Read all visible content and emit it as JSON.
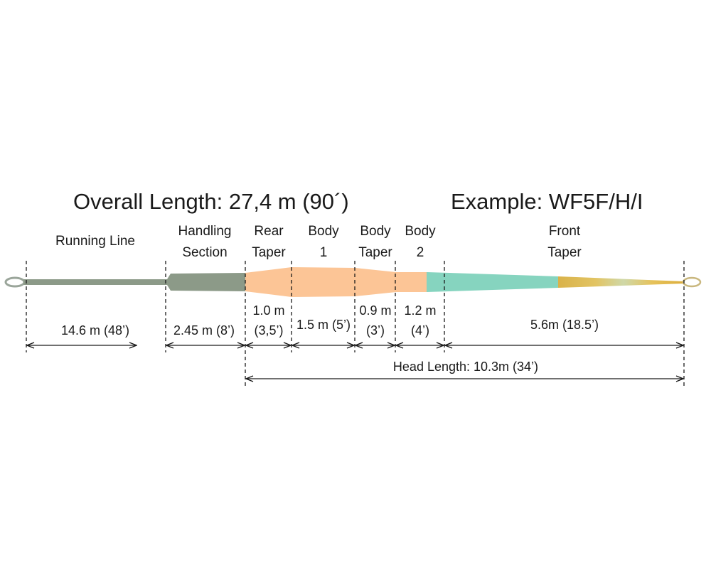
{
  "title_left": "Overall Length: 27,4 m (90´)",
  "title_right": "Example: WF5F/H/I",
  "sections": [
    {
      "id": "running-line",
      "label_lines": [
        "Running Line"
      ],
      "measure_lines": [
        "14.6 m (48’)"
      ],
      "color": "#8c9a88"
    },
    {
      "id": "handling-section",
      "label_lines": [
        "Handling",
        "Section"
      ],
      "measure_lines": [
        "2.45 m (8’)"
      ],
      "color": "#8c9a88"
    },
    {
      "id": "rear-taper",
      "label_lines": [
        "Rear",
        "Taper"
      ],
      "measure_lines": [
        "1.0 m",
        "(3,5’)"
      ],
      "color": "#fcc596"
    },
    {
      "id": "body-1",
      "label_lines": [
        "Body",
        "1"
      ],
      "measure_lines": [
        "1.5 m (5’)"
      ],
      "color": "#fcc596"
    },
    {
      "id": "body-taper",
      "label_lines": [
        "Body",
        "Taper"
      ],
      "measure_lines": [
        "0.9 m",
        "(3’)"
      ],
      "color": "#fcc596"
    },
    {
      "id": "body-2",
      "label_lines": [
        "Body",
        "2"
      ],
      "measure_lines": [
        "1.2 m",
        "(4’)"
      ],
      "color": "#fcc596"
    },
    {
      "id": "front-taper",
      "label_lines": [
        "Front",
        "Taper"
      ],
      "measure_lines": [
        "5.6m (18.5’)"
      ],
      "color": "#86d4bf"
    }
  ],
  "head_length": "Head Length: 10.3m (34’)",
  "colors": {
    "running_line": "#8c9a88",
    "head": "#fcc596",
    "front_taper": "#86d4bf",
    "tip_gold": "#ddb84a",
    "tip_light": "#ccd6a6",
    "loop": "#9aa59a",
    "ink": "#1a1a1a"
  }
}
